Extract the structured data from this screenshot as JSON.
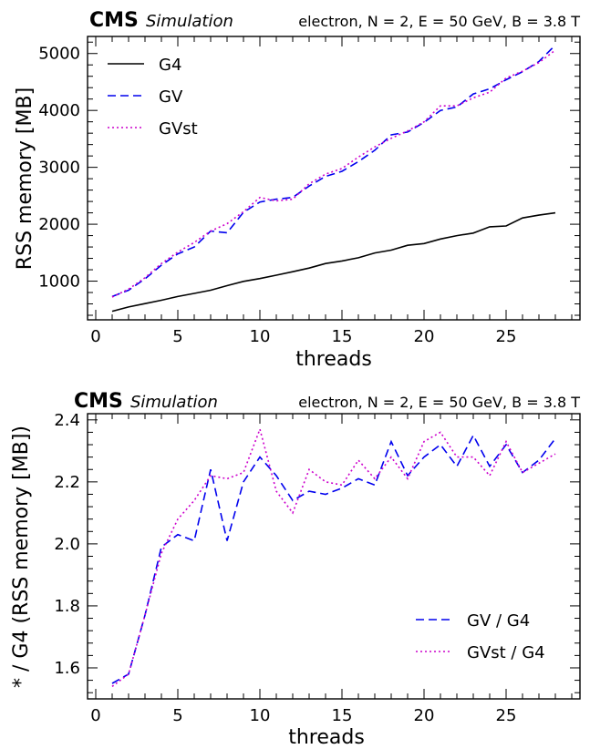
{
  "chart_data": [
    {
      "type": "line",
      "title": "",
      "header_left_bold": "CMS",
      "header_left_italic": "Simulation",
      "header_right": "electron, N = 2, E = 50 GeV, B = 3.8 T",
      "xlabel": "threads",
      "ylabel": "RSS memory [MB]",
      "xlim": [
        -0.5,
        29.5
      ],
      "ylim": [
        320,
        5300
      ],
      "xticks": [
        0,
        5,
        10,
        15,
        20,
        25
      ],
      "yticks": [
        1000,
        2000,
        3000,
        4000,
        5000
      ],
      "legend_position": "top-left",
      "x": [
        1,
        2,
        3,
        4,
        5,
        6,
        7,
        8,
        9,
        10,
        11,
        12,
        13,
        14,
        15,
        16,
        17,
        18,
        19,
        20,
        21,
        22,
        23,
        24,
        25,
        26,
        27,
        28
      ],
      "series": [
        {
          "name": "G4",
          "style": "solid",
          "color": "#000000",
          "values": [
            470,
            545,
            605,
            665,
            730,
            785,
            840,
            920,
            995,
            1045,
            1105,
            1165,
            1230,
            1310,
            1355,
            1410,
            1495,
            1545,
            1630,
            1660,
            1740,
            1800,
            1845,
            1955,
            1970,
            2110,
            2160,
            2200
          ]
        },
        {
          "name": "GV",
          "style": "dashed",
          "color": "#0000ee",
          "values": [
            730,
            840,
            1040,
            1280,
            1480,
            1600,
            1880,
            1850,
            2210,
            2390,
            2440,
            2470,
            2670,
            2840,
            2930,
            3100,
            3300,
            3570,
            3620,
            3790,
            4000,
            4060,
            4290,
            4380,
            4540,
            4680,
            4860,
            5150
          ]
        },
        {
          "name": "GVst",
          "style": "dotted",
          "color": "#cc00cc",
          "values": [
            720,
            860,
            1060,
            1310,
            1510,
            1680,
            1880,
            2010,
            2220,
            2470,
            2410,
            2440,
            2710,
            2880,
            2980,
            3180,
            3360,
            3510,
            3640,
            3800,
            4080,
            4080,
            4220,
            4320,
            4570,
            4690,
            4840,
            5060
          ]
        }
      ]
    },
    {
      "type": "line",
      "title": "",
      "header_left_bold": "CMS",
      "header_left_italic": "Simulation",
      "header_right": "electron, N = 2, E = 50 GeV, B = 3.8 T",
      "xlabel": "threads",
      "ylabel": "* / G4 (RSS memory [MB])",
      "xlim": [
        -0.5,
        29.5
      ],
      "ylim": [
        1.5,
        2.42
      ],
      "xticks": [
        0,
        5,
        10,
        15,
        20,
        25
      ],
      "yticks": [
        1.6,
        1.8,
        2.0,
        2.2,
        2.4
      ],
      "legend_position": "bottom-right",
      "x": [
        1,
        2,
        3,
        4,
        5,
        6,
        7,
        8,
        9,
        10,
        11,
        12,
        13,
        14,
        15,
        16,
        17,
        18,
        19,
        20,
        21,
        22,
        23,
        24,
        25,
        26,
        27,
        28
      ],
      "series": [
        {
          "name": "GV / G4",
          "style": "dashed",
          "color": "#0000ee",
          "values": [
            1.55,
            1.58,
            1.77,
            1.99,
            2.03,
            2.01,
            2.24,
            2.01,
            2.2,
            2.28,
            2.22,
            2.14,
            2.17,
            2.16,
            2.18,
            2.21,
            2.19,
            2.33,
            2.22,
            2.28,
            2.32,
            2.25,
            2.35,
            2.25,
            2.32,
            2.23,
            2.27,
            2.34
          ]
        },
        {
          "name": "GVst / G4",
          "style": "dotted",
          "color": "#cc00cc",
          "values": [
            1.54,
            1.58,
            1.77,
            1.97,
            2.08,
            2.14,
            2.22,
            2.21,
            2.23,
            2.37,
            2.17,
            2.1,
            2.24,
            2.2,
            2.19,
            2.27,
            2.21,
            2.28,
            2.21,
            2.33,
            2.36,
            2.28,
            2.28,
            2.22,
            2.33,
            2.23,
            2.26,
            2.29
          ]
        }
      ]
    }
  ]
}
